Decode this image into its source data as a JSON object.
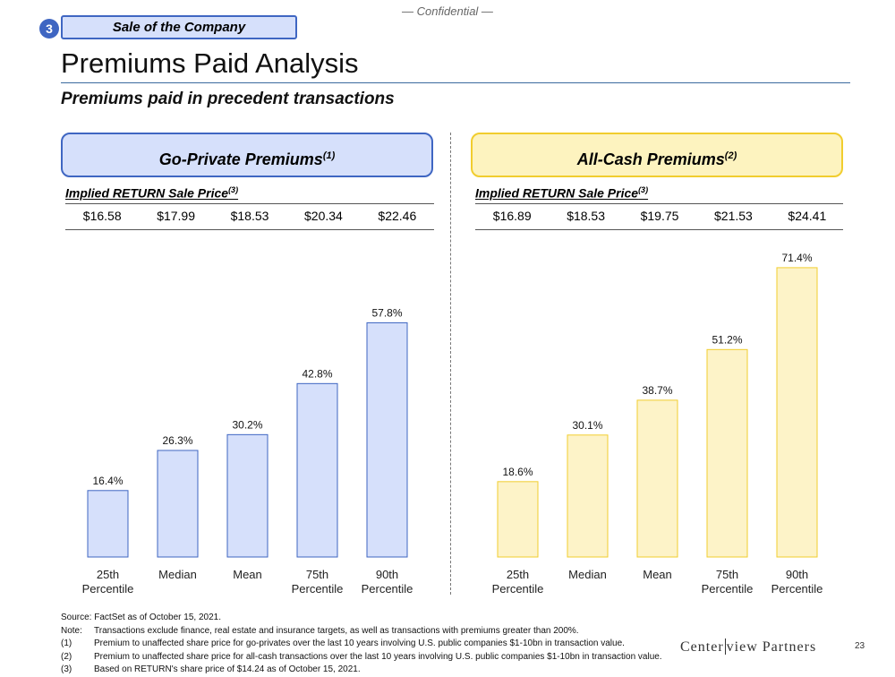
{
  "header": {
    "confidential": "— Confidential —",
    "section_number": "3",
    "section_label": "Sale of the Company",
    "title": "Premiums Paid Analysis",
    "subtitle": "Premiums paid in precedent transactions"
  },
  "panels": [
    {
      "heading": "Go-Private Premiums",
      "heading_note": "(1)",
      "implied_label": "Implied RETURN Sale Price",
      "implied_note": "(3)",
      "prices": [
        "$16.58",
        "$17.99",
        "$18.53",
        "$20.34",
        "$22.46"
      ]
    },
    {
      "heading": "All-Cash Premiums",
      "heading_note": "(2)",
      "implied_label": "Implied RETURN Sale Price",
      "implied_note": "(3)",
      "prices": [
        "$16.89",
        "$18.53",
        "$19.75",
        "$21.53",
        "$24.41"
      ]
    }
  ],
  "chart_data": [
    {
      "type": "bar",
      "title": "Go-Private Premiums",
      "categories": [
        [
          "25th",
          "Percentile"
        ],
        [
          "Median"
        ],
        [
          "Mean"
        ],
        [
          "75th",
          "Percentile"
        ],
        [
          "90th",
          "Percentile"
        ]
      ],
      "values": [
        16.4,
        26.3,
        30.2,
        42.8,
        57.8
      ],
      "value_labels": [
        "16.4%",
        "26.3%",
        "30.2%",
        "42.8%",
        "57.8%"
      ],
      "ylim": [
        0,
        80
      ],
      "fill": "#d6e0fb",
      "stroke": "#3f66c2"
    },
    {
      "type": "bar",
      "title": "All-Cash Premiums",
      "categories": [
        [
          "25th",
          "Percentile"
        ],
        [
          "Median"
        ],
        [
          "Mean"
        ],
        [
          "75th",
          "Percentile"
        ],
        [
          "90th",
          "Percentile"
        ]
      ],
      "values": [
        18.6,
        30.1,
        38.7,
        51.2,
        71.4
      ],
      "value_labels": [
        "18.6%",
        "30.1%",
        "38.7%",
        "51.2%",
        "71.4%"
      ],
      "ylim": [
        0,
        80
      ],
      "fill": "#fdf3c8",
      "stroke": "#f1cd2e"
    }
  ],
  "footnotes": {
    "source": "Source: FactSet as of October 15, 2021.",
    "note_label": "Note:",
    "note": "Transactions exclude finance, real estate and insurance targets, as well as transactions with premiums greater than 200%.",
    "items": [
      {
        "label": "(1)",
        "text": "Premium to unaffected share price for go-privates over the last 10 years involving U.S. public companies $1-10bn in transaction value."
      },
      {
        "label": "(2)",
        "text": "Premium to unaffected share price for all-cash transactions over the last 10 years involving U.S. public companies $1-10bn in transaction value."
      },
      {
        "label": "(3)",
        "text": "Based on RETURN's share price of $14.24 as of October 15, 2021."
      }
    ]
  },
  "logo": {
    "left": "Center",
    "right": "view Partners"
  },
  "page_number": "23"
}
